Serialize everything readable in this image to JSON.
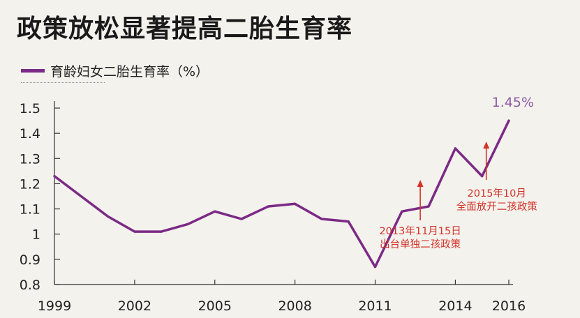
{
  "title": "政策放松显著提高二胎生育率",
  "legend": {
    "label": "育龄妇女二胎生育率（%）"
  },
  "colors": {
    "series": "#7b2a86",
    "annotation": "#d2342a",
    "peak_label": "#8e5aa6",
    "axis": "#333333"
  },
  "chart_data": {
    "type": "line",
    "x": [
      1999,
      2000,
      2001,
      2002,
      2003,
      2004,
      2005,
      2006,
      2007,
      2008,
      2009,
      2010,
      2011,
      2012,
      2013,
      2014,
      2015,
      2016
    ],
    "series": [
      {
        "name": "育龄妇女二胎生育率（%）",
        "values": [
          1.23,
          1.15,
          1.07,
          1.01,
          1.01,
          1.04,
          1.09,
          1.06,
          1.11,
          1.12,
          1.06,
          1.05,
          0.87,
          1.09,
          1.11,
          1.34,
          1.23,
          1.45
        ]
      }
    ],
    "x_ticks": [
      "1999",
      "2002",
      "2005",
      "2008",
      "2011",
      "2014",
      "2016"
    ],
    "y_ticks": [
      "1.5",
      "1.4",
      "1.3",
      "1.2",
      "1.1",
      "1",
      "0.9",
      "0.8"
    ],
    "ylim": [
      0.8,
      1.5
    ],
    "xlim": [
      1999,
      2016
    ],
    "grid": false,
    "peak_label": "1.45%",
    "annotations": [
      {
        "x": 2013,
        "lines": [
          "2013年11月15日",
          "出台单独二孩政策"
        ]
      },
      {
        "x": 2015,
        "lines": [
          "2015年10月",
          "全面放开二孩政策"
        ]
      }
    ]
  }
}
